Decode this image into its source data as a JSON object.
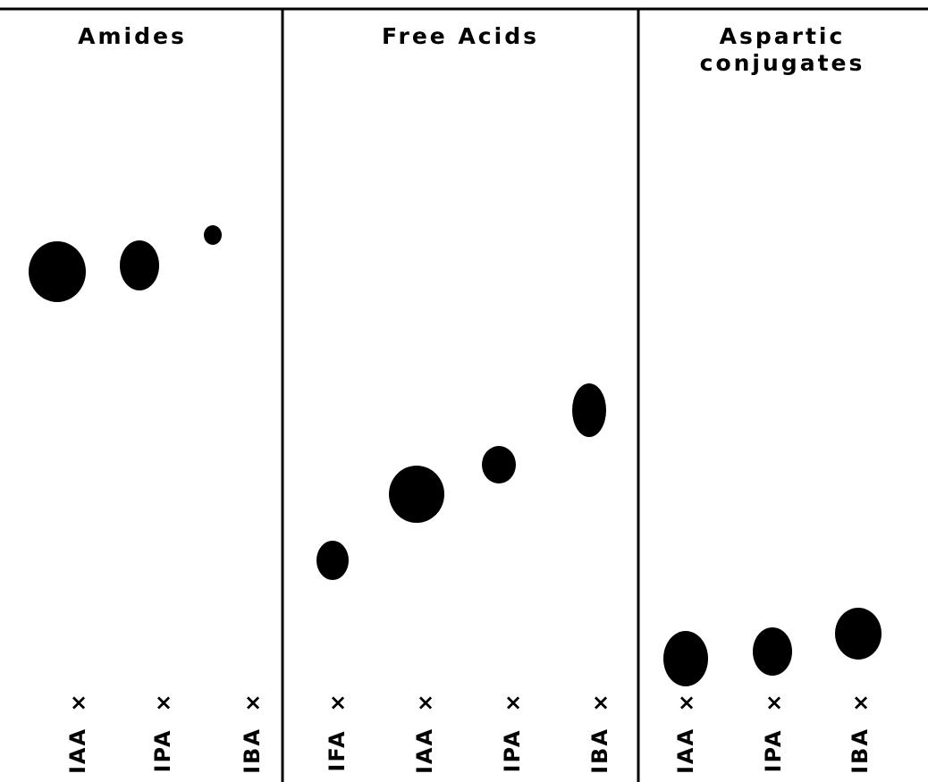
{
  "panels": [
    {
      "title_lines": [
        "Amides"
      ],
      "lanes": [
        "IAA",
        "IPA",
        "IBA"
      ]
    },
    {
      "title_lines": [
        "Free  Acids"
      ],
      "lanes": [
        "IFA",
        "IAA",
        "IPA",
        "IBA"
      ]
    },
    {
      "title_lines": [
        "Aspartic",
        "conjugates"
      ],
      "lanes": [
        "IAA",
        "IPA",
        "IBA"
      ]
    }
  ],
  "origin_mark": "×"
}
